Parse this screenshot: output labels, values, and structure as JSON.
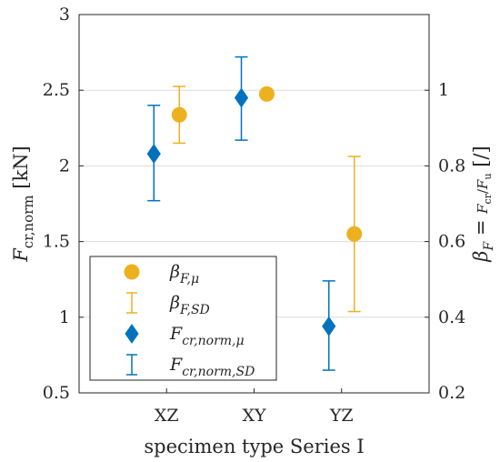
{
  "chart_data": {
    "type": "scatter",
    "categories": [
      "XZ",
      "XY",
      "YZ"
    ],
    "xlabel": "specimen type Series I",
    "ylabel_left": "F_cr,norm [kN]",
    "ylabel_right": "β_F = F_cr/F_u  [/]",
    "ylim_left": [
      0.5,
      3
    ],
    "ylim_right": [
      0.2,
      1.2
    ],
    "yticks_left": [
      "0.5",
      "1",
      "1.5",
      "2",
      "2.5",
      "3"
    ],
    "yticks_right": [
      "0.2",
      "0.4",
      "0.6",
      "0.8",
      "1"
    ],
    "grid": "horizontal",
    "legend_position": "bottom-left",
    "series": [
      {
        "name": "β_F,μ",
        "axis": "right",
        "marker": "circle",
        "color": "#EDB120",
        "values": [
          0.935,
          0.99,
          0.62
        ],
        "sd_lower": [
          0.86,
          null,
          0.415
        ],
        "sd_upper": [
          1.01,
          null,
          0.825
        ]
      },
      {
        "name": "F_cr,norm,μ",
        "axis": "left",
        "marker": "diamond",
        "color": "#0072BD",
        "values": [
          2.08,
          2.45,
          0.94
        ],
        "sd_lower": [
          1.77,
          2.17,
          0.65
        ],
        "sd_upper": [
          2.4,
          2.72,
          1.24
        ]
      }
    ],
    "legend": [
      {
        "label_base": "β",
        "label_sub": "F,μ",
        "kind": "marker-circle",
        "color": "#EDB120"
      },
      {
        "label_base": "β",
        "label_sub": "F,SD",
        "kind": "errorbar",
        "color": "#EDB120"
      },
      {
        "label_base": "F",
        "label_sub": "cr,norm,μ",
        "kind": "marker-diamond",
        "color": "#0072BD"
      },
      {
        "label_base": "F",
        "label_sub": "cr,norm,SD",
        "kind": "errorbar",
        "color": "#0072BD"
      }
    ]
  }
}
